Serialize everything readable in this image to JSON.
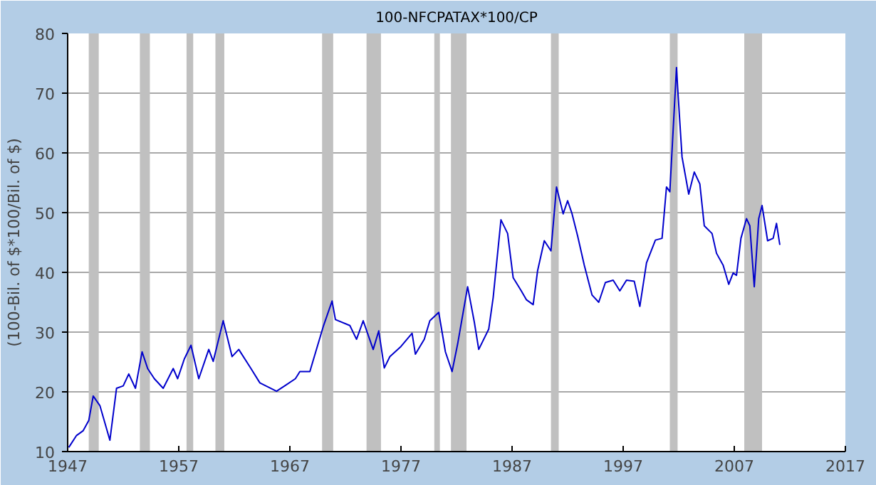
{
  "chart_data": {
    "type": "line",
    "title": "100-NFCPATAX*100/CP",
    "ylabel": "(100-Bil. of $*100/Bil. of $)",
    "xlim": [
      1947,
      2017
    ],
    "xticks": [
      1947,
      1957,
      1967,
      1977,
      1987,
      1997,
      2007,
      2017
    ],
    "ylim": [
      10,
      80
    ],
    "yticks": [
      10,
      20,
      30,
      40,
      50,
      60,
      70,
      80
    ],
    "grid": "y",
    "marker": "none",
    "line_style": "solid",
    "bands": [
      {
        "axis": "x",
        "from": 1948.9,
        "to": 1949.8,
        "color": "#c0c0c0"
      },
      {
        "axis": "x",
        "from": 1953.5,
        "to": 1954.4,
        "color": "#c0c0c0"
      },
      {
        "axis": "x",
        "from": 1957.7,
        "to": 1958.3,
        "color": "#c0c0c0"
      },
      {
        "axis": "x",
        "from": 1960.3,
        "to": 1961.1,
        "color": "#c0c0c0"
      },
      {
        "axis": "x",
        "from": 1969.9,
        "to": 1970.9,
        "color": "#c0c0c0"
      },
      {
        "axis": "x",
        "from": 1973.9,
        "to": 1975.2,
        "color": "#c0c0c0"
      },
      {
        "axis": "x",
        "from": 1980.0,
        "to": 1980.5,
        "color": "#c0c0c0"
      },
      {
        "axis": "x",
        "from": 1981.5,
        "to": 1982.9,
        "color": "#c0c0c0"
      },
      {
        "axis": "x",
        "from": 1990.5,
        "to": 1991.2,
        "color": "#c0c0c0"
      },
      {
        "axis": "x",
        "from": 2001.2,
        "to": 2001.9,
        "color": "#c0c0c0"
      },
      {
        "axis": "x",
        "from": 2007.9,
        "to": 2009.5,
        "color": "#c0c0c0"
      }
    ],
    "series": [
      {
        "color": "#0000cc",
        "x": [
          1947.1,
          1947.8,
          1948.4,
          1948.9,
          1949.3,
          1949.9,
          1950.8,
          1951.4,
          1952.0,
          1952.5,
          1953.1,
          1953.7,
          1954.2,
          1954.8,
          1955.6,
          1956.5,
          1956.9,
          1957.5,
          1958.1,
          1958.8,
          1959.7,
          1960.1,
          1961.0,
          1961.8,
          1962.4,
          1963.5,
          1964.3,
          1965.8,
          1966.7,
          1967.5,
          1967.9,
          1968.8,
          1970.0,
          1970.8,
          1971.1,
          1972.4,
          1973.0,
          1973.6,
          1974.5,
          1975.0,
          1975.5,
          1976.0,
          1977.0,
          1978.0,
          1978.3,
          1979.1,
          1979.6,
          1980.4,
          1981.0,
          1981.6,
          1982.1,
          1983.0,
          1983.6,
          1984.0,
          1984.9,
          1985.3,
          1986.0,
          1986.6,
          1987.1,
          1987.8,
          1988.3,
          1988.9,
          1989.3,
          1989.9,
          1990.5,
          1991.0,
          1991.6,
          1992.0,
          1992.4,
          1992.9,
          1993.5,
          1994.2,
          1994.8,
          1995.4,
          1996.1,
          1996.7,
          1997.3,
          1998.0,
          1998.5,
          1999.1,
          1999.9,
          2000.5,
          2000.9,
          2001.2,
          2001.8,
          2001.9,
          2002.3,
          2002.9,
          2003.4,
          2003.9,
          2004.3,
          2005.0,
          2005.4,
          2006.0,
          2006.5,
          2006.9,
          2007.2,
          2007.6,
          2008.1,
          2008.4,
          2008.8,
          2009.2,
          2009.5,
          2010.0,
          2010.5,
          2010.8,
          2011.1
        ],
        "values": [
          10.7,
          12.7,
          13.5,
          15.2,
          19.3,
          17.7,
          11.9,
          20.6,
          21.0,
          23.0,
          20.6,
          26.7,
          23.9,
          22.2,
          20.6,
          23.9,
          22.2,
          25.5,
          27.8,
          22.2,
          27.1,
          25.1,
          31.9,
          25.9,
          27.1,
          23.9,
          21.5,
          20.1,
          21.2,
          22.2,
          23.4,
          23.4,
          30.9,
          35.2,
          32.1,
          31.1,
          28.8,
          31.9,
          27.1,
          30.2,
          24.0,
          25.9,
          27.6,
          29.8,
          26.3,
          28.8,
          31.9,
          33.3,
          26.7,
          23.4,
          28.0,
          37.6,
          31.7,
          27.1,
          30.5,
          35.8,
          48.8,
          46.5,
          39.1,
          37.0,
          35.4,
          34.6,
          40.3,
          45.3,
          43.6,
          54.3,
          49.8,
          52.0,
          49.8,
          46.1,
          41.2,
          36.2,
          35.0,
          38.3,
          38.7,
          36.9,
          38.7,
          38.5,
          34.3,
          41.6,
          45.4,
          45.7,
          54.3,
          53.5,
          74.3,
          71.0,
          59.3,
          53.1,
          56.8,
          54.8,
          47.8,
          46.5,
          43.2,
          41.2,
          38.0,
          39.9,
          39.5,
          45.7,
          49.0,
          47.8,
          37.6,
          49.0,
          51.2,
          45.3,
          45.7,
          48.2,
          44.6
        ]
      }
    ]
  }
}
